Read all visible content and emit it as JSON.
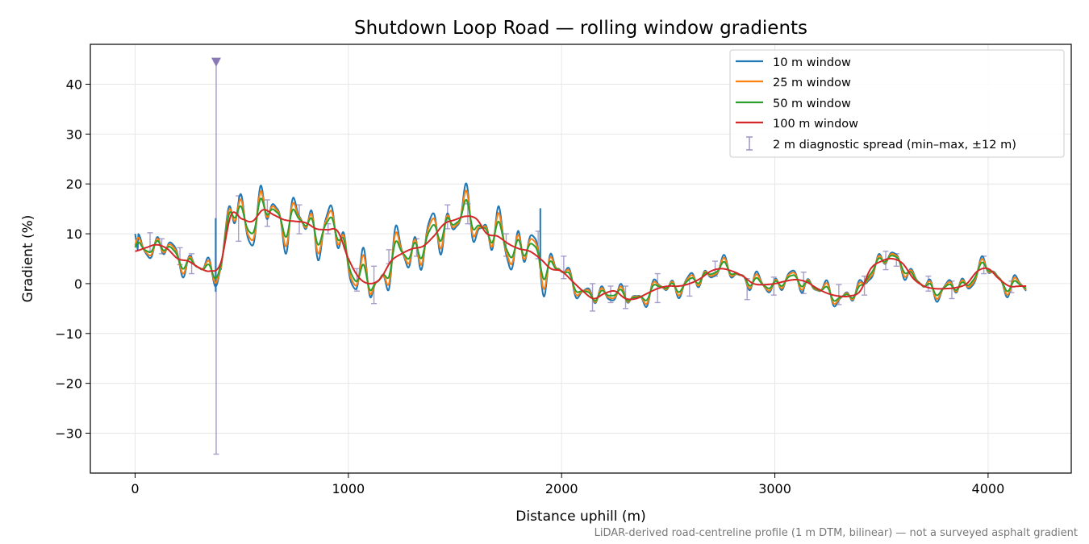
{
  "chart_data": {
    "type": "line",
    "title": "Shutdown Loop Road — rolling window gradients",
    "xlabel": "Distance uphill (m)",
    "ylabel": "Gradient (%)",
    "footnote": "LiDAR-derived road-centreline profile (1 m DTM, bilinear) — not a surveyed asphalt gradient",
    "xlim": [
      -210,
      4390
    ],
    "ylim": [
      -38,
      48
    ],
    "x_ticks": [
      "0",
      "1000",
      "2000",
      "3000",
      "4000"
    ],
    "y_ticks": [
      "−30",
      "−20",
      "−10",
      "0",
      "10",
      "20",
      "30",
      "40"
    ],
    "grid": true,
    "legend_position": "top-right",
    "legend_entries": [
      "10 m window",
      "25 m window",
      "50 m window",
      "100 m window",
      "2 m diagnostic spread (min–max, ±12 m)"
    ],
    "colors": {
      "w10": "#1f77b4",
      "w25": "#ff7f0e",
      "w50": "#2ca02c",
      "w100": "#d62728",
      "spread": "#9d94c4",
      "outlier_marker": "#8878b4"
    },
    "trend_100m": [
      [
        0,
        6.5
      ],
      [
        50,
        7.2
      ],
      [
        100,
        7.8
      ],
      [
        150,
        7.0
      ],
      [
        200,
        5.0
      ],
      [
        250,
        4.5
      ],
      [
        300,
        3.2
      ],
      [
        350,
        2.5
      ],
      [
        400,
        4.0
      ],
      [
        450,
        13.8
      ],
      [
        500,
        13.0
      ],
      [
        550,
        12.5
      ],
      [
        600,
        14.8
      ],
      [
        650,
        13.8
      ],
      [
        700,
        12.8
      ],
      [
        750,
        12.5
      ],
      [
        800,
        12.2
      ],
      [
        850,
        11.0
      ],
      [
        900,
        10.8
      ],
      [
        950,
        10.5
      ],
      [
        1000,
        5.0
      ],
      [
        1050,
        1.2
      ],
      [
        1100,
        0.0
      ],
      [
        1150,
        1.0
      ],
      [
        1200,
        4.5
      ],
      [
        1250,
        6.0
      ],
      [
        1300,
        7.0
      ],
      [
        1350,
        7.5
      ],
      [
        1400,
        9.5
      ],
      [
        1450,
        12.0
      ],
      [
        1500,
        12.8
      ],
      [
        1550,
        13.5
      ],
      [
        1600,
        13.0
      ],
      [
        1650,
        10.0
      ],
      [
        1700,
        9.5
      ],
      [
        1750,
        8.0
      ],
      [
        1800,
        7.0
      ],
      [
        1850,
        6.5
      ],
      [
        1900,
        5.0
      ],
      [
        1950,
        3.0
      ],
      [
        2000,
        2.5
      ],
      [
        2050,
        0.5
      ],
      [
        2100,
        -1.5
      ],
      [
        2150,
        -3.0
      ],
      [
        2200,
        -2.0
      ],
      [
        2250,
        -1.5
      ],
      [
        2300,
        -3.0
      ],
      [
        2350,
        -3.0
      ],
      [
        2400,
        -2.0
      ],
      [
        2450,
        -1.0
      ],
      [
        2500,
        -0.5
      ],
      [
        2550,
        -0.5
      ],
      [
        2600,
        0.0
      ],
      [
        2650,
        1.0
      ],
      [
        2700,
        2.5
      ],
      [
        2750,
        3.0
      ],
      [
        2800,
        2.5
      ],
      [
        2850,
        1.5
      ],
      [
        2900,
        0.0
      ],
      [
        2950,
        -0.2
      ],
      [
        3000,
        0.0
      ],
      [
        3050,
        0.5
      ],
      [
        3100,
        0.8
      ],
      [
        3150,
        0.3
      ],
      [
        3200,
        -1.0
      ],
      [
        3250,
        -2.0
      ],
      [
        3300,
        -2.5
      ],
      [
        3350,
        -2.5
      ],
      [
        3400,
        -1.5
      ],
      [
        3450,
        3.0
      ],
      [
        3500,
        4.5
      ],
      [
        3550,
        5.0
      ],
      [
        3600,
        4.0
      ],
      [
        3650,
        1.0
      ],
      [
        3700,
        -0.5
      ],
      [
        3750,
        -1.0
      ],
      [
        3800,
        -1.0
      ],
      [
        3850,
        -0.8
      ],
      [
        3900,
        0.0
      ],
      [
        3950,
        2.5
      ],
      [
        4000,
        3.0
      ],
      [
        4050,
        1.0
      ],
      [
        4100,
        -0.5
      ],
      [
        4150,
        -0.5
      ],
      [
        4180,
        -0.5
      ]
    ],
    "spread_bars": [
      [
        70,
        6.5,
        10.2
      ],
      [
        125,
        6.0,
        9.0
      ],
      [
        210,
        3.8,
        7.2
      ],
      [
        265,
        2.0,
        6.0
      ],
      [
        380,
        -34.2,
        44.5
      ],
      [
        485,
        8.5,
        17.6
      ],
      [
        620,
        11.5,
        16.8
      ],
      [
        770,
        10.0,
        15.8
      ],
      [
        905,
        10.0,
        12.0
      ],
      [
        1040,
        -1.5,
        3.0
      ],
      [
        1120,
        -4.0,
        3.5
      ],
      [
        1190,
        4.0,
        6.8
      ],
      [
        1320,
        5.5,
        9.0
      ],
      [
        1465,
        11.0,
        15.8
      ],
      [
        1560,
        12.0,
        16.0
      ],
      [
        1740,
        5.5,
        10.0
      ],
      [
        1890,
        5.0,
        10.5
      ],
      [
        2010,
        1.0,
        5.5
      ],
      [
        2145,
        -5.5,
        0.0
      ],
      [
        2230,
        -3.8,
        -0.5
      ],
      [
        2300,
        -5.0,
        -0.5
      ],
      [
        2450,
        -3.8,
        2.0
      ],
      [
        2600,
        -2.5,
        1.0
      ],
      [
        2720,
        1.5,
        4.5
      ],
      [
        2870,
        -3.2,
        1.0
      ],
      [
        2995,
        -2.3,
        1.3
      ],
      [
        3135,
        -2.0,
        2.3
      ],
      [
        3300,
        -4.2,
        -0.2
      ],
      [
        3420,
        -2.3,
        1.5
      ],
      [
        3520,
        2.8,
        6.5
      ],
      [
        3570,
        3.5,
        6.0
      ],
      [
        3720,
        -1.5,
        1.5
      ],
      [
        3830,
        -3.0,
        0.5
      ],
      [
        3980,
        2.0,
        5.5
      ],
      [
        4110,
        -1.8,
        0.5
      ]
    ],
    "outlier_marker": {
      "x": 380,
      "y": 44.5
    },
    "spikes": [
      {
        "x": 378,
        "w10": [
          -1.5,
          13.0
        ]
      },
      {
        "x": 1900,
        "w10": [
          8.0,
          15.0
        ]
      }
    ],
    "window_amplitudes": {
      "w10": 3.2,
      "w25": 2.5,
      "w50": 1.6
    },
    "x_range": [
      0,
      4180
    ]
  }
}
